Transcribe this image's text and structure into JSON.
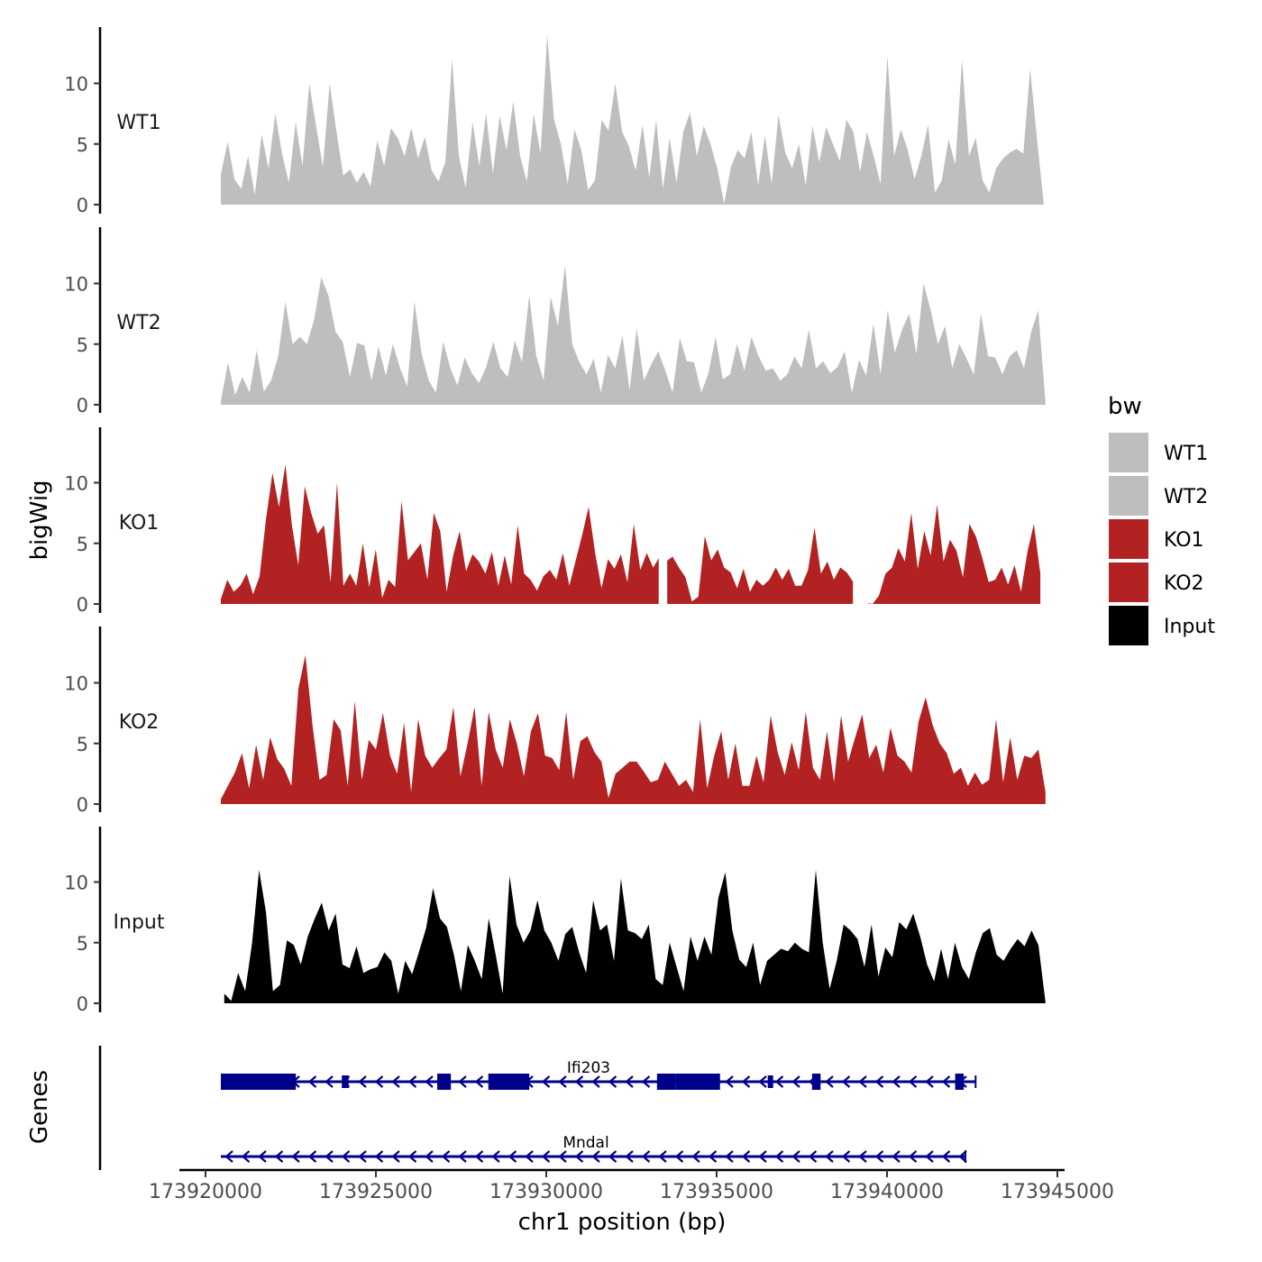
{
  "chart_data": {
    "type": "area",
    "ylabel": "bigWig",
    "xlabel": "chr1 position (bp)",
    "x_range": [
      173920000,
      173945000
    ],
    "x_ticks": [
      173920000,
      173925000,
      173930000,
      173935000,
      173940000,
      173945000
    ],
    "x_tick_labels": [
      "173920000",
      "173925000",
      "173930000",
      "173935000",
      "173940000",
      "173945000"
    ],
    "y_range": [
      0,
      14
    ],
    "y_ticks": [
      0,
      5,
      10
    ],
    "y_tick_labels": [
      "0",
      "5",
      "10"
    ],
    "legend": {
      "title": "bw",
      "position": "right",
      "entries": [
        {
          "label": "WT1",
          "color": "#bebebe"
        },
        {
          "label": "WT2",
          "color": "#bebebe"
        },
        {
          "label": "KO1",
          "color": "#b22222"
        },
        {
          "label": "KO2",
          "color": "#b22222"
        },
        {
          "label": "Input",
          "color": "#000000"
        }
      ]
    },
    "series": [
      {
        "name": "WT1",
        "color": "#bebebe",
        "x_start": 173920450,
        "x_end": 173944600,
        "values": [
          2.5,
          5.2,
          2.1,
          1.3,
          4.0,
          0.8,
          5.8,
          3.0,
          7.5,
          4.2,
          1.8,
          6.8,
          3.2,
          10.0,
          6.5,
          3.1,
          10.0,
          6.0,
          2.4,
          2.9,
          1.8,
          2.7,
          1.5,
          5.3,
          3.2,
          6.3,
          5.5,
          4.0,
          6.3,
          3.8,
          5.6,
          2.8,
          1.9,
          3.5,
          12.0,
          4.0,
          1.4,
          6.8,
          3.2,
          7.5,
          2.6,
          7.3,
          4.5,
          8.5,
          4.0,
          1.9,
          7.5,
          4.2,
          14.0,
          7.0,
          5.0,
          1.7,
          6.2,
          4.5,
          1.2,
          2.0,
          7.0,
          6.1,
          10.0,
          6.0,
          4.8,
          2.8,
          6.6,
          2.2,
          7.0,
          1.3,
          5.5,
          1.8,
          6.0,
          7.6,
          4.0,
          6.5,
          5.0,
          3.0,
          0.1,
          3.1,
          4.5,
          3.8,
          6.0,
          1.6,
          5.7,
          1.7,
          7.4,
          4.3,
          3.0,
          5.0,
          1.6,
          6.5,
          3.5,
          6.4,
          5.0,
          3.6,
          7.0,
          6.0,
          2.7,
          6.0,
          4.0,
          1.7,
          12.3,
          4.0,
          6.2,
          4.5,
          2.1,
          4.0,
          6.6,
          1.0,
          2.0,
          5.4,
          3.3,
          12.0,
          4.0,
          5.5,
          2.0,
          1.0,
          3.0,
          3.8,
          4.3,
          4.6,
          4.2,
          11.2,
          5.5,
          0.1
        ]
      },
      {
        "name": "WT2",
        "color": "#bebebe",
        "x_start": 173920450,
        "x_end": 173944650,
        "values": [
          0.3,
          3.5,
          0.8,
          2.3,
          1.0,
          4.5,
          1.1,
          2.0,
          4.0,
          8.5,
          5.0,
          5.6,
          5.0,
          7.0,
          10.5,
          9.0,
          6.0,
          5.2,
          2.3,
          5.1,
          4.9,
          2.0,
          4.8,
          2.4,
          5.0,
          3.0,
          1.5,
          8.5,
          4.2,
          2.0,
          1.0,
          5.2,
          3.0,
          1.6,
          3.9,
          2.6,
          1.8,
          3.1,
          5.2,
          3.0,
          2.3,
          5.3,
          3.5,
          9.0,
          4.0,
          2.0,
          8.9,
          6.5,
          11.5,
          5.0,
          3.5,
          2.5,
          3.8,
          1.0,
          4.1,
          3.0,
          5.7,
          1.2,
          6.3,
          2.0,
          3.3,
          4.4,
          2.8,
          1.0,
          5.5,
          3.6,
          3.5,
          1.0,
          2.6,
          5.6,
          2.1,
          2.5,
          5.0,
          2.8,
          5.6,
          4.0,
          2.8,
          3.0,
          2.0,
          2.5,
          4.0,
          3.0,
          6.2,
          3.0,
          3.6,
          2.6,
          3.1,
          4.4,
          1.0,
          3.7,
          2.4,
          6.7,
          2.5,
          7.8,
          4.3,
          6.2,
          7.5,
          4.2,
          10.0,
          7.8,
          5.0,
          6.5,
          3.0,
          5.0,
          3.8,
          2.5,
          7.5,
          4.0,
          3.9,
          2.5,
          4.0,
          4.5,
          3.0,
          6.0,
          7.8,
          0.2
        ]
      },
      {
        "name": "KO1",
        "color": "#b22222",
        "x_start": 173920450,
        "x_end": 173944500,
        "gaps": [
          [
            173933300,
            173933550
          ],
          [
            173939000,
            173939450
          ]
        ],
        "values": [
          0.4,
          2.0,
          1.0,
          1.5,
          2.5,
          0.8,
          2.3,
          7.0,
          10.8,
          8.0,
          11.5,
          6.5,
          3.2,
          9.7,
          7.5,
          5.8,
          6.5,
          1.8,
          10.0,
          1.5,
          2.5,
          1.5,
          5.0,
          1.4,
          4.5,
          0.5,
          2.0,
          1.4,
          8.5,
          3.6,
          4.3,
          5.0,
          2.0,
          7.5,
          6.0,
          1.0,
          4.0,
          6.0,
          2.7,
          4.1,
          3.5,
          2.5,
          4.3,
          1.5,
          4.0,
          1.6,
          6.5,
          2.5,
          2.0,
          1.1,
          2.3,
          2.8,
          2.0,
          4.2,
          1.5,
          3.6,
          5.7,
          8.0,
          4.2,
          1.3,
          3.7,
          2.9,
          4.1,
          1.8,
          6.6,
          2.8,
          4.2,
          3.0,
          3.9,
          3.5,
          3.9,
          3.0,
          2.2,
          0.2,
          0.6,
          5.6,
          3.6,
          4.5,
          3.0,
          2.6,
          1.3,
          2.9,
          1.0,
          2.0,
          1.5,
          2.0,
          3.0,
          2.0,
          2.9,
          1.5,
          1.5,
          2.8,
          6.3,
          2.5,
          3.5,
          2.0,
          3.0,
          2.6,
          1.8,
          1.0,
          0.1,
          0.0,
          0.7,
          2.5,
          3.0,
          4.6,
          3.5,
          7.5,
          2.9,
          6.0,
          4.0,
          8.2,
          3.5,
          5.3,
          4.4,
          2.2,
          6.6,
          5.6,
          3.8,
          1.8,
          2.0,
          3.0,
          1.6,
          3.2,
          1.0,
          4.3,
          6.6,
          2.5
        ]
      },
      {
        "name": "KO2",
        "color": "#b22222",
        "x_start": 173920450,
        "x_end": 173944650,
        "values": [
          0.4,
          1.5,
          2.6,
          4.2,
          1.3,
          4.9,
          2.0,
          5.5,
          3.7,
          2.9,
          1.5,
          9.5,
          12.3,
          6.5,
          2.0,
          2.4,
          7.0,
          6.1,
          1.5,
          8.5,
          2.0,
          5.3,
          4.5,
          7.5,
          4.0,
          2.5,
          6.7,
          1.0,
          7.0,
          4.0,
          3.0,
          3.8,
          4.5,
          8.0,
          2.3,
          5.0,
          8.0,
          1.5,
          7.6,
          4.5,
          3.0,
          7.0,
          5.0,
          2.3,
          6.0,
          7.5,
          4.0,
          3.8,
          2.8,
          7.6,
          2.0,
          5.2,
          5.6,
          4.3,
          3.5,
          0.5,
          2.5,
          3.0,
          3.5,
          3.5,
          2.7,
          1.8,
          2.0,
          3.5,
          2.5,
          1.5,
          2.0,
          1.0,
          7.0,
          1.3,
          4.0,
          6.0,
          2.0,
          5.0,
          1.5,
          1.5,
          4.0,
          1.8,
          7.3,
          4.3,
          2.4,
          5.1,
          2.8,
          7.6,
          3.0,
          2.0,
          6.0,
          1.8,
          7.3,
          3.5,
          5.5,
          7.4,
          3.8,
          4.9,
          2.6,
          6.3,
          4.0,
          3.5,
          2.6,
          6.8,
          8.8,
          6.5,
          5.0,
          4.2,
          2.5,
          3.0,
          1.5,
          2.6,
          1.6,
          2.0,
          7.0,
          1.8,
          5.5,
          2.0,
          4.0,
          3.8,
          4.5,
          1.0
        ]
      },
      {
        "name": "Input",
        "color": "#000000",
        "x_start": 173920550,
        "x_end": 173944650,
        "values": [
          0.8,
          0.2,
          2.5,
          1.0,
          5.0,
          11.0,
          7.5,
          1.0,
          1.5,
          5.2,
          4.8,
          3.2,
          5.5,
          7.0,
          8.3,
          6.0,
          7.4,
          3.2,
          2.9,
          4.7,
          2.5,
          2.8,
          3.0,
          4.2,
          3.5,
          0.8,
          3.5,
          2.4,
          4.3,
          6.2,
          9.5,
          7.0,
          6.3,
          4.0,
          1.0,
          4.8,
          3.5,
          2.0,
          7.0,
          4.0,
          0.8,
          10.5,
          6.5,
          5.0,
          6.0,
          8.5,
          6.0,
          5.0,
          3.5,
          5.7,
          6.3,
          4.2,
          2.5,
          8.5,
          6.0,
          6.5,
          3.5,
          10.3,
          6.0,
          5.8,
          5.3,
          6.5,
          2.0,
          1.5,
          5.0,
          3.0,
          1.0,
          5.5,
          3.5,
          5.5,
          4.0,
          8.7,
          10.8,
          6.0,
          3.6,
          3.0,
          5.0,
          1.5,
          3.5,
          4.0,
          4.5,
          4.3,
          5.0,
          4.5,
          4.2,
          11.0,
          5.0,
          1.2,
          3.5,
          6.5,
          6.0,
          5.3,
          3.0,
          6.5,
          2.2,
          4.6,
          3.8,
          6.7,
          6.1,
          7.4,
          5.5,
          3.2,
          1.8,
          4.5,
          2.0,
          5.0,
          3.0,
          2.0,
          4.2,
          5.8,
          6.2,
          4.0,
          3.5,
          4.5,
          5.3,
          4.7,
          6.0,
          4.8,
          0.1
        ]
      }
    ],
    "genes_track": {
      "label": "Genes",
      "strand": "minus",
      "color": "#00008b",
      "genes": [
        {
          "name": "Ifi203",
          "start": 173920450,
          "end": 173942600,
          "exons": [
            [
              173920450,
              173922650,
              "thick"
            ],
            [
              173924000,
              173924200,
              "thin"
            ],
            [
              173926800,
              173927200,
              "thick"
            ],
            [
              173928300,
              173929500,
              "thick"
            ],
            [
              173933250,
              173933800,
              "thick"
            ],
            [
              173933800,
              173935100,
              "thick"
            ],
            [
              173936500,
              173936600,
              "thin"
            ],
            [
              173937800,
              173938050,
              "thick"
            ],
            [
              173942000,
              173942250,
              "thick"
            ]
          ]
        },
        {
          "name": "Mndal",
          "start": 173920450,
          "end": 173942300,
          "exons": []
        }
      ]
    }
  }
}
